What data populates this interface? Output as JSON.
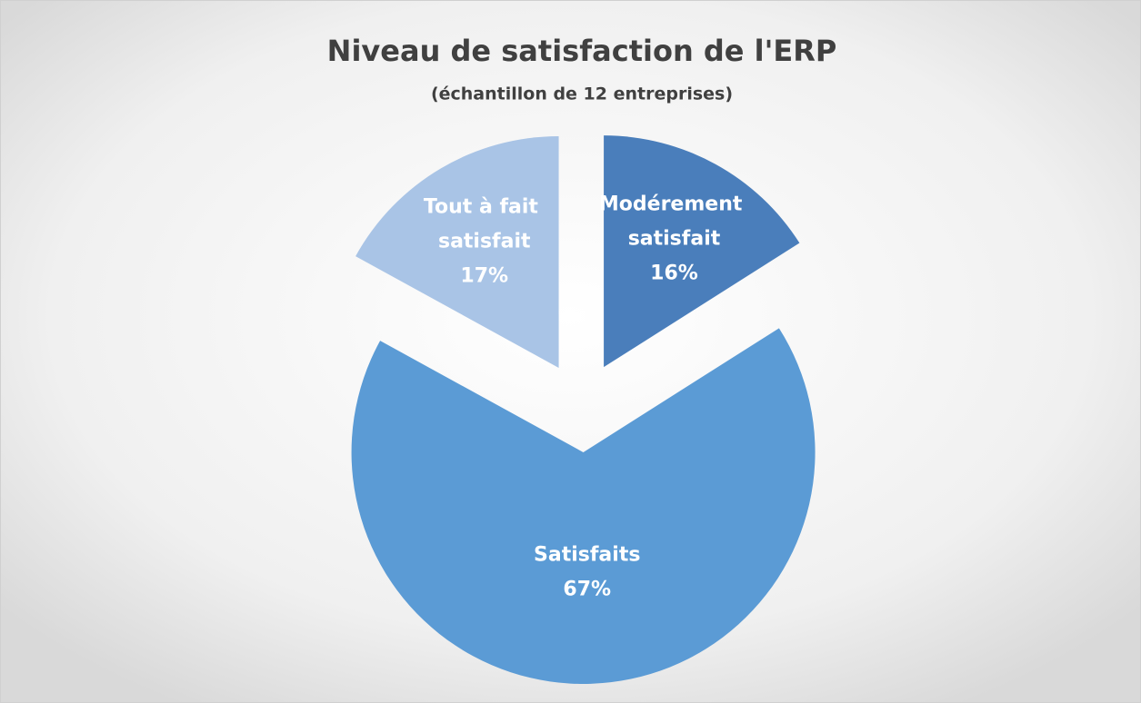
{
  "chart_data": {
    "type": "pie",
    "title": "Niveau de satisfaction de l'ERP",
    "subtitle": "(échantillon de 12 entreprises)",
    "categories": [
      "Modérement satisfait",
      "Satisfaits",
      "Tout à fait satisfait"
    ],
    "values": [
      16,
      67,
      17
    ],
    "value_labels": [
      "16%",
      "67%",
      "17%"
    ],
    "colors": [
      "#4a7ebb",
      "#5b9bd5",
      "#a9c4e6"
    ]
  }
}
